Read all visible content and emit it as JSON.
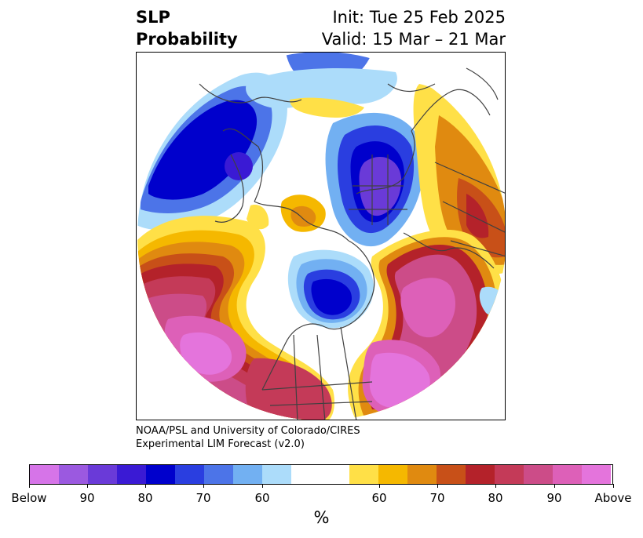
{
  "title": {
    "left_line1": "SLP",
    "left_line2": "Probability",
    "right_line1": "Init: Tue 25 Feb 2025",
    "right_line2": "Valid: 15 Mar – 21 Mar"
  },
  "credit": {
    "line1": "NOAA/PSL and University of Colorado/CIRES",
    "line2": "Experimental LIM Forecast (v2.0)"
  },
  "colorbar": {
    "unit": "%",
    "ticks": [
      "Below",
      "90",
      "80",
      "70",
      "60",
      "60",
      "70",
      "80",
      "90",
      "Above"
    ],
    "colors": [
      "#d674e8",
      "#9b59e0",
      "#6a3ad8",
      "#3a1ad4",
      "#0000cc",
      "#2a3ee0",
      "#4c74e8",
      "#72b0f2",
      "#acdcfa",
      "#ffffff",
      "#ffe047",
      "#f5b800",
      "#e08a10",
      "#c85018",
      "#b4222a",
      "#c43a58",
      "#cc4c88",
      "#dd60b8",
      "#e474dc"
    ]
  }
}
